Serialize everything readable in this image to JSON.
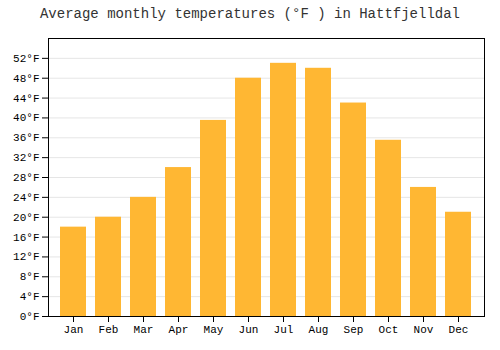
{
  "chart_data": {
    "type": "bar",
    "title": "Average monthly temperatures (°F ) in Hattfjelldal",
    "categories": [
      "Jan",
      "Feb",
      "Mar",
      "Apr",
      "May",
      "Jun",
      "Jul",
      "Aug",
      "Sep",
      "Oct",
      "Nov",
      "Dec"
    ],
    "values": [
      18.0,
      20.0,
      24.0,
      30.0,
      39.5,
      48.0,
      51.0,
      50.0,
      43.0,
      35.5,
      26.0,
      21.0
    ],
    "color": "#FFB733",
    "ylim": [
      0,
      56
    ],
    "yticks": [
      {
        "value": 0,
        "label": "0°F"
      },
      {
        "value": 4,
        "label": "4°F"
      },
      {
        "value": 8,
        "label": "8°F"
      },
      {
        "value": 12,
        "label": "12°F"
      },
      {
        "value": 16,
        "label": "16°F"
      },
      {
        "value": 20,
        "label": "20°F"
      },
      {
        "value": 24,
        "label": "24°F"
      },
      {
        "value": 28,
        "label": "28°F"
      },
      {
        "value": 32,
        "label": "32°F"
      },
      {
        "value": 36,
        "label": "36°F"
      },
      {
        "value": 40,
        "label": "40°F"
      },
      {
        "value": 44,
        "label": "44°F"
      },
      {
        "value": 48,
        "label": "48°F"
      },
      {
        "value": 52,
        "label": "52°F"
      }
    ],
    "grid": true
  }
}
